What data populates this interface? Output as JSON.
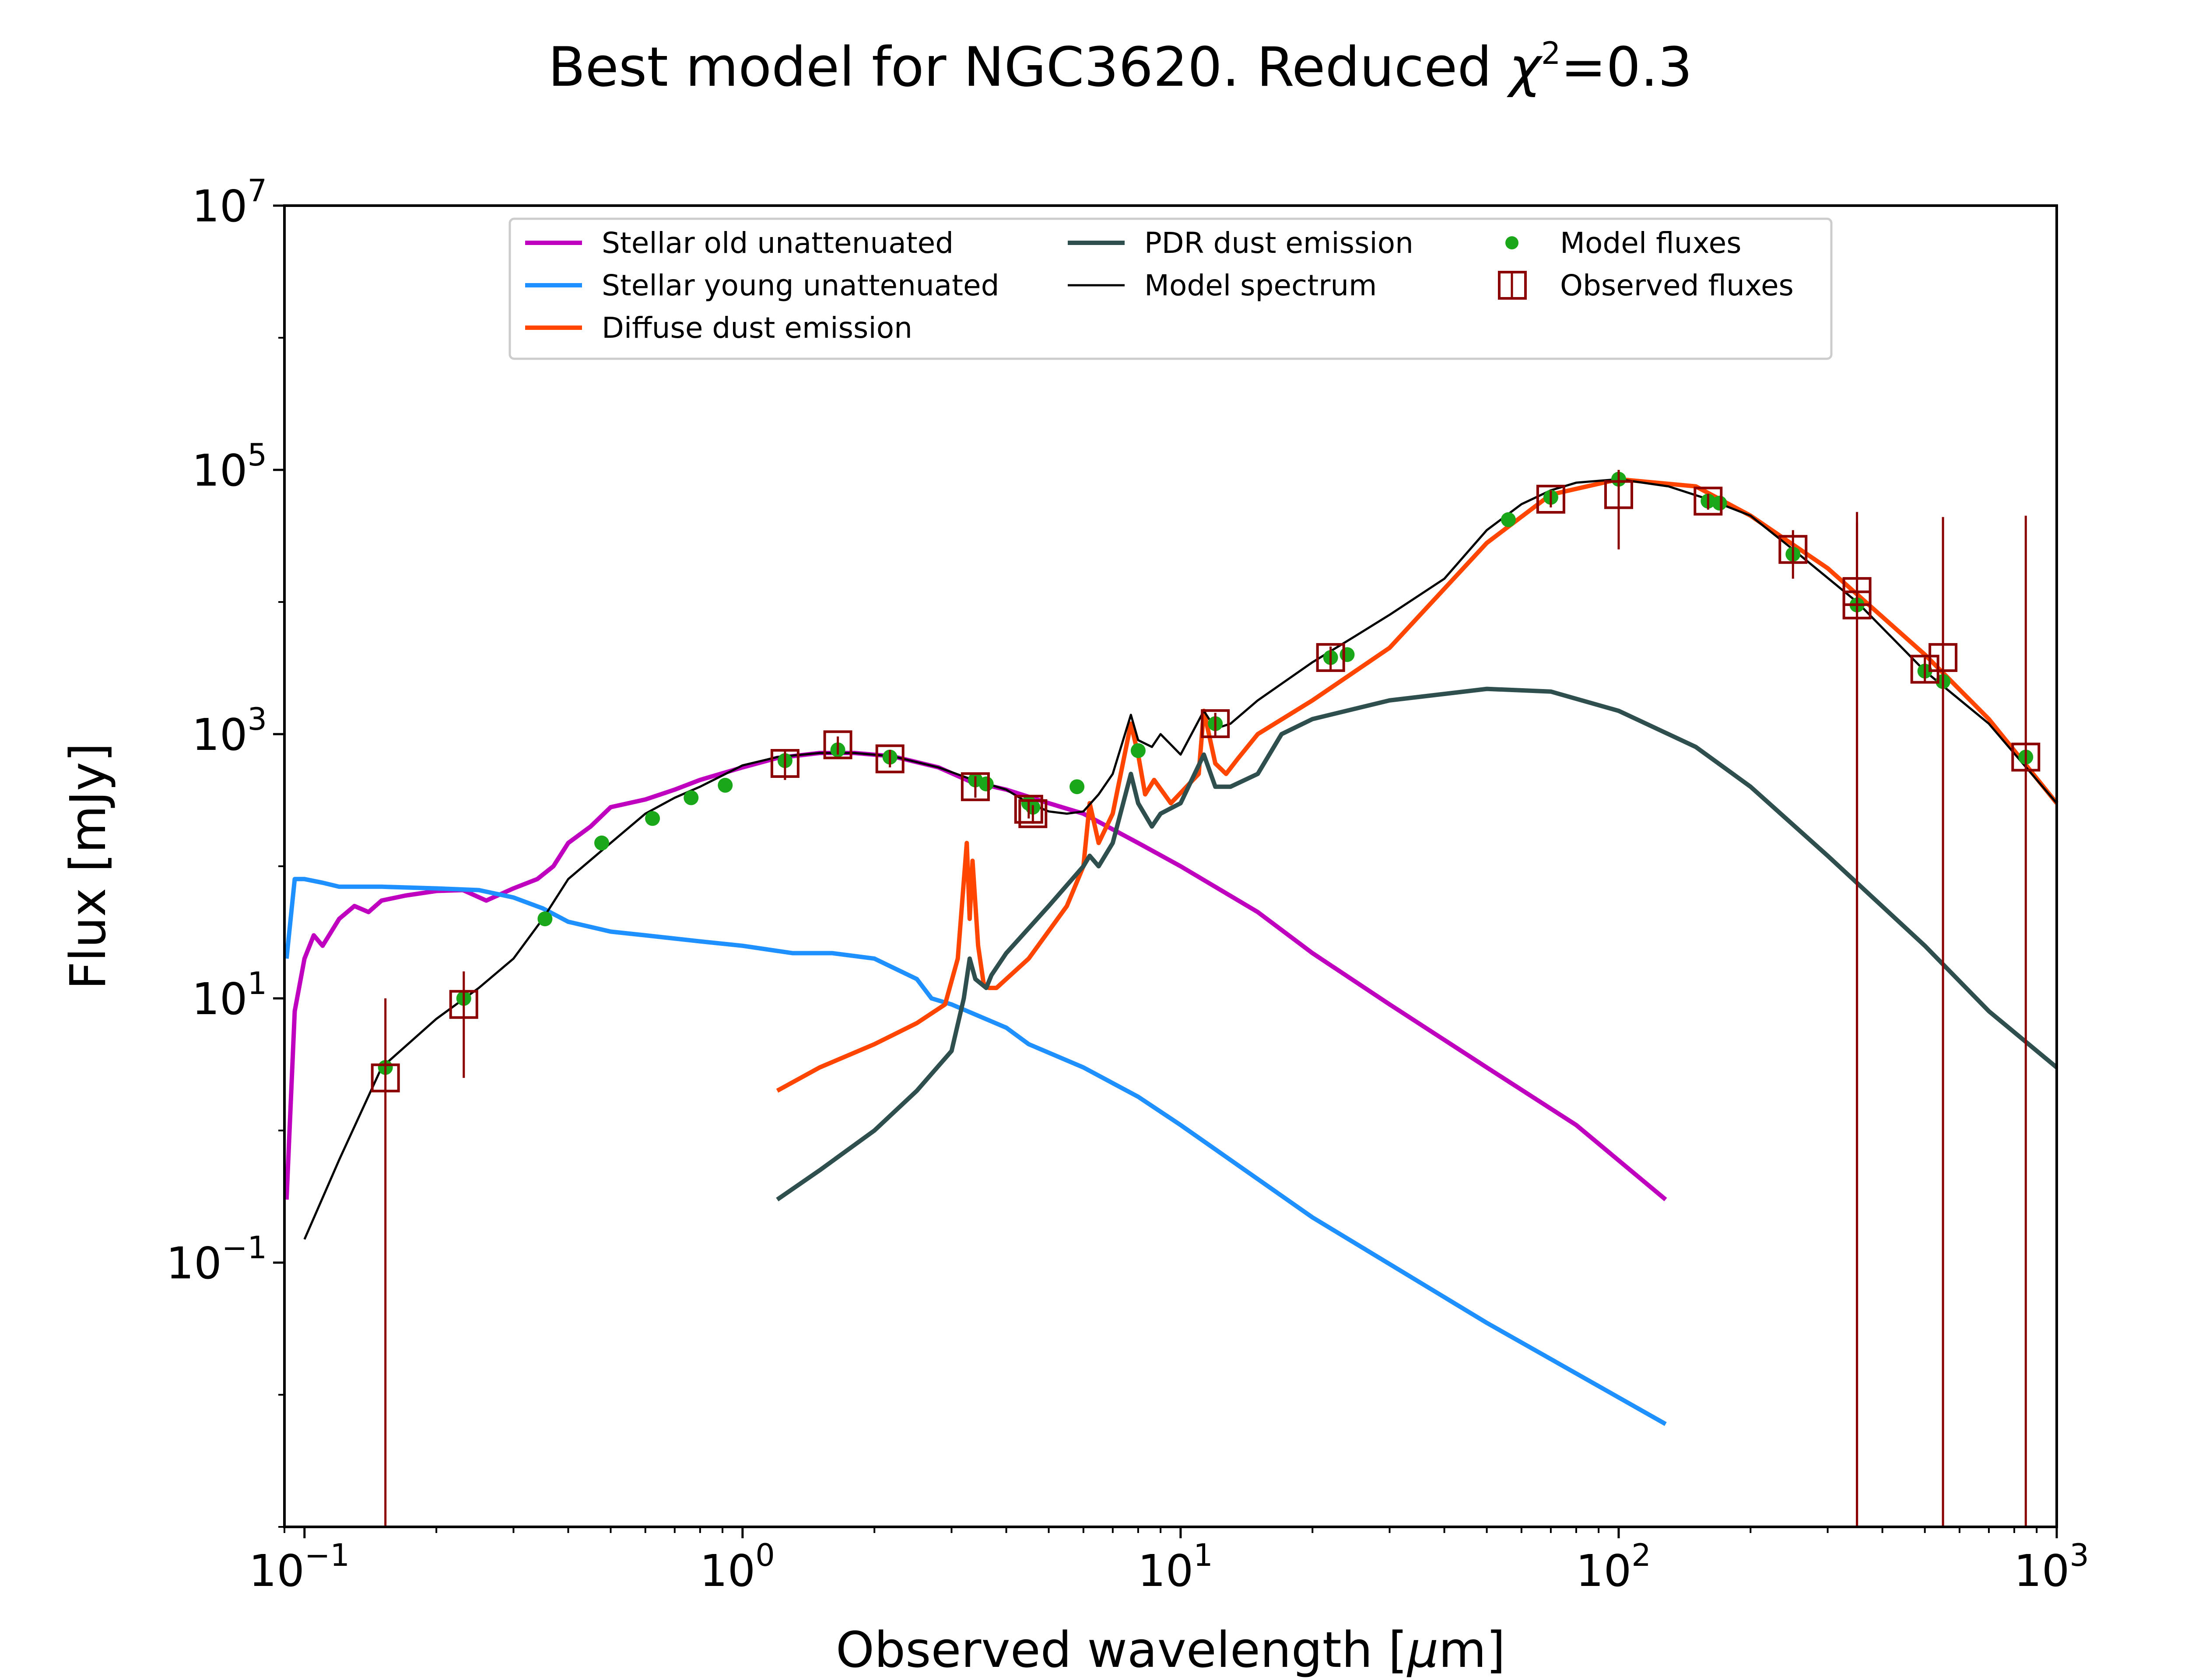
{
  "chart_data": {
    "type": "line",
    "title": {
      "text": "Best model for NGC3620. Reduced ",
      "chi": "χ",
      "chi_sup": "2",
      "value": "=0.3"
    },
    "xlabel": {
      "text": "Observed wavelength [",
      "mu": "μ",
      "unit_end": "m]"
    },
    "ylabel": "Flux [mJy]",
    "x_scale": "log",
    "y_scale": "log",
    "xlim": [
      0.09,
      1000
    ],
    "ylim": [
      0.001,
      10000000
    ],
    "x_ticks": [
      {
        "base": "10",
        "exp": "−1",
        "value": 0.1
      },
      {
        "base": "10",
        "exp": "0",
        "value": 1
      },
      {
        "base": "10",
        "exp": "1",
        "value": 10
      },
      {
        "base": "10",
        "exp": "2",
        "value": 100
      },
      {
        "base": "10",
        "exp": "3",
        "value": 1000
      }
    ],
    "y_ticks": [
      {
        "base": "10",
        "exp": "−1",
        "value": 0.1
      },
      {
        "base": "10",
        "exp": "1",
        "value": 10
      },
      {
        "base": "10",
        "exp": "3",
        "value": 1000
      },
      {
        "base": "10",
        "exp": "5",
        "value": 100000
      },
      {
        "base": "10",
        "exp": "7",
        "value": 10000000
      }
    ],
    "grid": false,
    "legend_position": "top-center",
    "colors": {
      "stellar_old": "#bf00bf",
      "stellar_young": "#1e90ff",
      "diffuse_dust": "#ff4500",
      "pdr_dust": "#2f4f4f",
      "model_spectrum": "#000000",
      "model_fluxes": "#1aa81a",
      "observed_fluxes": "#8b0000"
    },
    "series": [
      {
        "name": "Stellar old unattenuated",
        "key": "stellar_old",
        "kind": "line",
        "x": [
          0.091,
          0.095,
          0.1,
          0.105,
          0.11,
          0.12,
          0.13,
          0.14,
          0.15,
          0.17,
          0.2,
          0.23,
          0.26,
          0.3,
          0.34,
          0.37,
          0.4,
          0.45,
          0.5,
          0.6,
          0.7,
          0.8,
          1.0,
          1.2,
          1.5,
          1.8,
          2.2,
          2.8,
          3.3,
          4.0,
          5.0,
          6.0,
          8.0,
          10,
          15,
          20,
          30,
          50,
          80,
          128
        ],
        "y": [
          0.3,
          8,
          20,
          30,
          25,
          40,
          50,
          45,
          55,
          60,
          65,
          66,
          55,
          68,
          80,
          100,
          150,
          200,
          280,
          320,
          380,
          450,
          560,
          660,
          720,
          720,
          680,
          560,
          440,
          380,
          300,
          250,
          150,
          100,
          45,
          22,
          9,
          3,
          1.1,
          0.3
        ]
      },
      {
        "name": "Stellar young unattenuated",
        "key": "stellar_young",
        "kind": "line",
        "x": [
          0.091,
          0.095,
          0.1,
          0.11,
          0.12,
          0.15,
          0.2,
          0.25,
          0.3,
          0.35,
          0.4,
          0.5,
          0.6,
          0.8,
          1.0,
          1.3,
          1.6,
          2.0,
          2.5,
          2.7,
          3.0,
          4.0,
          4.5,
          6.0,
          8.0,
          10,
          20,
          50,
          128
        ],
        "y": [
          20,
          80,
          80,
          75,
          70,
          70,
          68,
          66,
          58,
          48,
          38,
          32,
          30,
          27,
          25,
          22,
          22,
          20,
          14,
          10,
          9,
          6,
          4.5,
          3,
          1.8,
          1.1,
          0.22,
          0.035,
          0.006
        ]
      },
      {
        "name": "Diffuse dust emission",
        "key": "diffuse_dust",
        "kind": "line",
        "x": [
          1.2,
          1.5,
          2.0,
          2.5,
          2.9,
          3.1,
          3.25,
          3.3,
          3.35,
          3.45,
          3.55,
          3.65,
          3.8,
          4.5,
          5.5,
          6.0,
          6.2,
          6.5,
          7.0,
          7.7,
          8.0,
          8.3,
          8.7,
          9.5,
          11.0,
          11.3,
          12.0,
          12.7,
          13.5,
          15,
          20,
          30,
          50,
          70,
          100,
          150,
          200,
          300,
          500,
          700,
          1000
        ],
        "y": [
          2,
          3,
          4.5,
          6.5,
          9,
          20,
          150,
          40,
          110,
          25,
          13,
          12,
          12,
          20,
          50,
          100,
          300,
          150,
          250,
          1200,
          700,
          350,
          450,
          300,
          500,
          1500,
          600,
          500,
          650,
          1000,
          1800,
          4500,
          28000,
          65000,
          85000,
          75000,
          45000,
          18000,
          4000,
          1300,
          300
        ]
      },
      {
        "name": "PDR dust emission",
        "key": "pdr_dust",
        "kind": "line",
        "x": [
          1.2,
          1.5,
          2.0,
          2.5,
          3.0,
          3.2,
          3.3,
          3.4,
          3.6,
          3.7,
          4.0,
          5.0,
          6.0,
          6.2,
          6.5,
          7.0,
          7.7,
          8.0,
          8.6,
          9.0,
          10.0,
          11.3,
          12.0,
          13.0,
          15.0,
          17.0,
          20.0,
          30.0,
          50.0,
          70.0,
          100.0,
          150.0,
          200.0,
          300.0,
          500.0,
          700.0,
          1000.0
        ],
        "y": [
          0.3,
          0.5,
          1.0,
          2.0,
          4.0,
          10,
          20,
          14,
          12,
          15,
          22,
          50,
          100,
          120,
          100,
          150,
          500,
          300,
          200,
          250,
          300,
          700,
          400,
          400,
          500,
          1000,
          1300,
          1800,
          2200,
          2100,
          1500,
          800,
          400,
          120,
          25,
          8,
          3
        ]
      },
      {
        "name": "Model spectrum",
        "key": "model_spectrum",
        "kind": "line",
        "x": [
          0.1,
          0.12,
          0.15,
          0.2,
          0.25,
          0.3,
          0.35,
          0.4,
          0.5,
          0.6,
          0.7,
          0.8,
          1.0,
          1.2,
          1.5,
          1.8,
          2.2,
          2.8,
          3.3,
          4.0,
          4.5,
          5.0,
          5.5,
          6.0,
          6.5,
          7.0,
          7.7,
          8.0,
          8.6,
          9.0,
          10,
          11.3,
          12,
          13,
          15,
          20,
          25,
          30,
          40,
          50,
          60,
          70,
          80,
          100,
          130,
          160,
          200,
          250,
          350,
          500,
          700,
          1000
        ],
        "y": [
          0.15,
          0.6,
          3,
          7,
          12,
          20,
          40,
          80,
          150,
          250,
          330,
          400,
          580,
          670,
          720,
          720,
          680,
          560,
          460,
          380,
          300,
          260,
          250,
          260,
          350,
          500,
          1400,
          900,
          800,
          1000,
          700,
          1500,
          1100,
          1200,
          1800,
          3500,
          5500,
          8000,
          15000,
          35000,
          55000,
          70000,
          80000,
          85000,
          75000,
          60000,
          45000,
          25000,
          10000,
          3000,
          1200,
          300
        ]
      },
      {
        "name": "Model fluxes",
        "key": "model_fluxes",
        "kind": "scatter",
        "x": [
          0.153,
          0.231,
          0.354,
          0.477,
          0.623,
          0.763,
          0.913,
          1.25,
          1.65,
          2.17,
          3.4,
          3.6,
          4.5,
          4.6,
          5.8,
          8.0,
          12.0,
          22.0,
          24.0,
          56.0,
          70.0,
          100.0,
          160.0,
          170.0,
          250.0,
          350.0,
          500.0,
          550.0,
          850.0
        ],
        "y": [
          3,
          10,
          40,
          150,
          230,
          330,
          410,
          630,
          760,
          670,
          450,
          420,
          300,
          280,
          400,
          750,
          1200,
          3800,
          4000,
          42000,
          62000,
          85000,
          58000,
          56000,
          23000,
          9500,
          3000,
          2500,
          670
        ]
      },
      {
        "name": "Observed fluxes",
        "key": "observed_fluxes",
        "kind": "errorbar",
        "x": [
          0.153,
          0.231,
          1.25,
          1.65,
          2.17,
          3.4,
          4.5,
          4.6,
          12.0,
          22.0,
          70.0,
          100.0,
          160.0,
          250.0,
          350.0,
          350.0,
          500.0,
          550.0,
          850.0
        ],
        "y": [
          2.5,
          9,
          600,
          830,
          650,
          400,
          270,
          250,
          1200,
          3800,
          60000,
          65000,
          58000,
          25000,
          12000,
          9500,
          3100,
          3800,
          670
        ],
        "err_low": [
          0.001,
          2.5,
          450,
          700,
          560,
          330,
          230,
          210,
          950,
          3000,
          52000,
          25000,
          50000,
          15000,
          0.001,
          0.001,
          2500,
          0.001,
          0.001
        ],
        "err_high": [
          10,
          16,
          750,
          960,
          760,
          480,
          310,
          290,
          1450,
          4600,
          70000,
          100000,
          66000,
          35000,
          48000,
          40000,
          3800,
          44000,
          45000
        ]
      }
    ]
  }
}
